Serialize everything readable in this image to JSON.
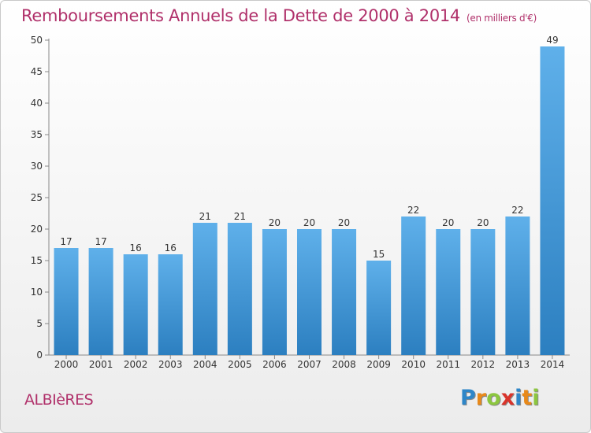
{
  "header": {
    "title": "Remboursements Annuels de la Dette de 2000 à 2014",
    "unit": "(en milliers d'€)"
  },
  "footer": {
    "commune": "ALBIèRES",
    "logo": {
      "letters": [
        "P",
        "r",
        "o",
        "x",
        "i",
        "t",
        "i"
      ],
      "colors": [
        "#2e86c8",
        "#e8891a",
        "#8cc63f",
        "#d9342b",
        "#2e86c8",
        "#e8891a",
        "#8cc63f"
      ]
    }
  },
  "chart_data": {
    "type": "bar",
    "categories": [
      "2000",
      "2001",
      "2002",
      "2003",
      "2004",
      "2005",
      "2006",
      "2007",
      "2008",
      "2009",
      "2010",
      "2011",
      "2012",
      "2013",
      "2014"
    ],
    "values": [
      17,
      17,
      16,
      16,
      21,
      21,
      20,
      20,
      20,
      15,
      22,
      20,
      20,
      22,
      49
    ],
    "ylim": [
      0,
      50
    ],
    "yticks": [
      0,
      5,
      10,
      15,
      20,
      25,
      30,
      35,
      40,
      45,
      50
    ],
    "grid": false,
    "bar_color_top": "#5fb0ea",
    "bar_color_bottom": "#2c7fc0",
    "axis_color": "#888888",
    "label_color": "#333333"
  }
}
